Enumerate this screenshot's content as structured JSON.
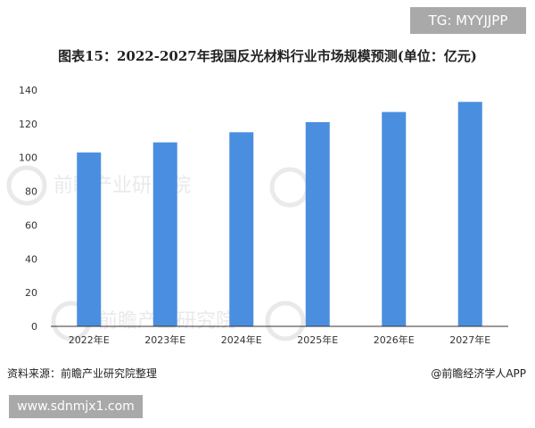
{
  "tag_badge": "TG: MYYJJPP",
  "url_badge": "www.sdnmjx1.com",
  "footer": {
    "source": "资料来源：前瞻产业研究院整理",
    "brand": "@前瞻经济学人APP"
  },
  "colors": {
    "bar": "#4a8ee0",
    "axis": "#333333",
    "watermark": "#d8d8d8"
  },
  "chart_data": {
    "type": "bar",
    "title": "图表15：2022-2027年我国反光材料行业市场规模预测(单位：亿元)",
    "xlabel": "",
    "ylabel": "",
    "categories": [
      "2022年E",
      "2023年E",
      "2024年E",
      "2025年E",
      "2026年E",
      "2027年E"
    ],
    "values": [
      103,
      109,
      115,
      121,
      127,
      133
    ],
    "ylim": [
      0,
      140
    ],
    "yticks": [
      0,
      20,
      40,
      60,
      80,
      100,
      120,
      140
    ],
    "grid": false
  }
}
